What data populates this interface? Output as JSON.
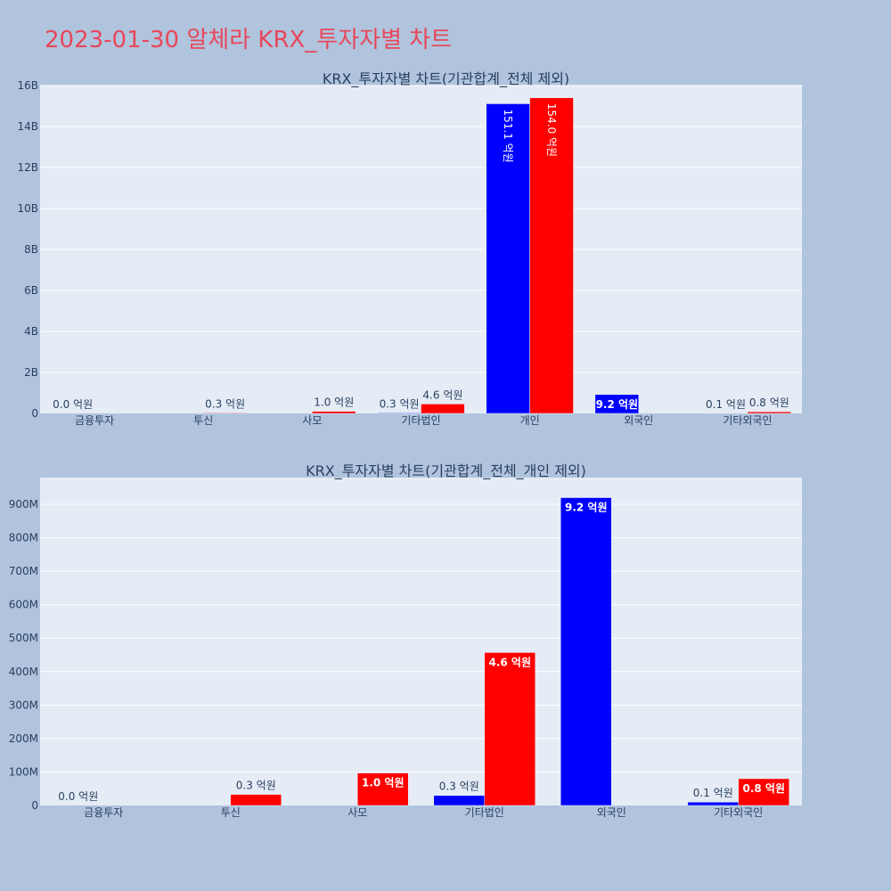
{
  "page": {
    "title": "2023-01-30 알체라 KRX_투자자별 차트"
  },
  "colors": {
    "buy": "#0000ff",
    "sell": "#ff0000",
    "plot_bg": "#e5ecf6",
    "grid": "#ffffff",
    "text": "#2a3f5f"
  },
  "chart_data": [
    {
      "type": "bar",
      "title": "KRX_투자자별 차트(기관합계_전체 제외)",
      "categories": [
        "금융투자",
        "투신",
        "사모",
        "기타법인",
        "개인",
        "외국인",
        "기타외국인"
      ],
      "ylim": [
        0,
        16000000000
      ],
      "yticks": [
        0,
        2000000000,
        4000000000,
        6000000000,
        8000000000,
        10000000000,
        12000000000,
        14000000000,
        16000000000
      ],
      "ytick_labels": [
        "0",
        "2B",
        "4B",
        "6B",
        "8B",
        "10B",
        "12B",
        "14B",
        "16B"
      ],
      "grid": true,
      "series": [
        {
          "color_key": "buy",
          "values": [
            0,
            0,
            0,
            30000000,
            15110000000,
            920000000,
            10000000
          ],
          "labels": [
            "0.0 억원",
            "",
            "",
            "0.3 억원",
            "151.1 억원",
            "9.2 억원",
            "0.1 억원"
          ]
        },
        {
          "color_key": "sell",
          "values": [
            0,
            30000000,
            100000000,
            460000000,
            15400000000,
            0,
            80000000
          ],
          "labels": [
            "",
            "0.3 억원",
            "1.0 억원",
            "4.6 억원",
            "154.0 억원",
            "",
            "0.8 억원"
          ]
        }
      ]
    },
    {
      "type": "bar",
      "title": "KRX_투자자별 차트(기관합계_전체_개인 제외)",
      "categories": [
        "금융투자",
        "투신",
        "사모",
        "기타법인",
        "외국인",
        "기타외국인"
      ],
      "ylim": [
        0,
        980000000
      ],
      "yticks": [
        0,
        100000000,
        200000000,
        300000000,
        400000000,
        500000000,
        600000000,
        700000000,
        800000000,
        900000000
      ],
      "ytick_labels": [
        "0",
        "100M",
        "200M",
        "300M",
        "400M",
        "500M",
        "600M",
        "700M",
        "800M",
        "900M"
      ],
      "grid": true,
      "series": [
        {
          "color_key": "buy",
          "values": [
            0,
            0,
            0,
            30000000,
            920000000,
            10000000
          ],
          "labels": [
            "0.0 억원",
            "",
            "",
            "0.3 억원",
            "9.2 억원",
            "0.1 억원"
          ]
        },
        {
          "color_key": "sell",
          "values": [
            0,
            33000000,
            97000000,
            457000000,
            0,
            80000000
          ],
          "labels": [
            "",
            "0.3 억원",
            "1.0 억원",
            "4.6 억원",
            "",
            "0.8 억원"
          ]
        }
      ]
    }
  ]
}
